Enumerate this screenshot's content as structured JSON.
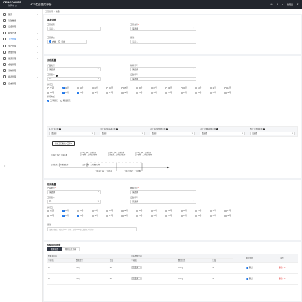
{
  "topbar": {
    "logo_en": "CFMOTORRS",
    "logo_cn": "春 风 动 力",
    "system_title": "MCP工业使用平台",
    "user_name": "管理员",
    "icons": [
      "bell-icon",
      "help-icon",
      "user-icon",
      "logout-icon"
    ]
  },
  "sidebar": {
    "items": [
      {
        "label": "首页",
        "icon": "home-icon",
        "active": false
      },
      {
        "label": "基础数据",
        "icon": "database-icon",
        "active": false
      },
      {
        "label": "设备管理",
        "icon": "device-icon",
        "active": false
      },
      {
        "label": "模型开发",
        "icon": "model-icon",
        "active": false
      },
      {
        "label": "工艺管理",
        "icon": "process-icon",
        "active": true
      },
      {
        "label": "生产管理",
        "icon": "production-icon",
        "active": false
      },
      {
        "label": "质量管理",
        "icon": "quality-icon",
        "active": false
      },
      {
        "label": "能源管理",
        "icon": "energy-icon",
        "active": false
      },
      {
        "label": "仓储管理",
        "icon": "warehouse-icon",
        "active": false
      },
      {
        "label": "系统管理",
        "icon": "system-icon",
        "active": false
      },
      {
        "label": "报表管理",
        "icon": "report-icon",
        "active": false
      },
      {
        "label": "日志管理",
        "icon": "log-icon",
        "active": false
      }
    ],
    "collapse_icon": "≡"
  },
  "breadcrumb": {
    "parent": "工艺管理",
    "current": "新增"
  },
  "basic": {
    "title": "基本信息",
    "code_label": "工艺编码",
    "code_placeholder": "请输入",
    "type_label": "工艺类型",
    "type_value": "请选择",
    "status_label": "工艺状态",
    "status_on": "启用",
    "status_off": "禁用",
    "remark_label": "备注",
    "remark_placeholder": "请输入"
  },
  "stage_section": {
    "title": "流程配置",
    "product_label": "产品类型",
    "product_value": "请选择",
    "material_label": "物料型号",
    "material_value": "请选择",
    "version_label": "工艺版本",
    "version_value": "V1",
    "equip_label": "设备型号",
    "equip_value": "请选择",
    "days_label": "执行日",
    "days_row1": [
      "全选",
      "01号",
      "02号",
      "03号",
      "04号",
      "05号",
      "06号",
      "07号",
      "08号",
      "09号",
      "10号",
      "11号",
      "12号"
    ],
    "days_row1_checked": [
      false,
      true,
      false,
      false,
      false,
      false,
      false,
      false,
      false,
      false,
      false,
      false,
      false
    ],
    "days_row2": [
      "13号",
      "14号",
      "15号",
      "16号",
      "17号",
      "18号",
      "19号",
      "20号",
      "21号",
      "22号",
      "23号",
      "24号",
      "25号"
    ],
    "days_row2_checked": [
      false,
      true,
      true,
      false,
      false,
      false,
      false,
      false,
      false,
      false,
      false,
      false,
      false
    ],
    "mode_label": "执行方式",
    "mode_options": [
      "工序模式",
      "路线模式"
    ],
    "stages": [
      {
        "label": "1.0工序名称",
        "value": "请选择"
      },
      {
        "label": "2.0工序检验标准名称",
        "value": "请选择"
      },
      {
        "label": "3.0工序检验项目名称",
        "value": "请选择"
      },
      {
        "label": "4.0工序物料清单名称",
        "value": "请选择"
      },
      {
        "label": "5.0工序资源名称",
        "value": "请选择"
      }
    ],
    "add_button": "添加工艺路线 / 工序 +",
    "flow_texts": [
      "工序1/工序2：工序名称",
      "工序1/工序2：工序名称\n工序名称：工序资源名称",
      "工序1/工序2：工序名称\n工序名称：工序资源名称",
      "工序1/工序2：工序名称\n工序名称：工序资源名称",
      "工序名称：工序资源名称",
      "工序名称：工序资源名称",
      "工序1/工序2：工序名称",
      "工序1/工序2：工序名称"
    ]
  },
  "rule_section": {
    "title": "规则配置",
    "product_label": "产品类型",
    "product_value": "请选择",
    "material_label": "物料型号",
    "material_value": "请选择",
    "version_label": "工艺版本",
    "version_value": "V1",
    "equip_label": "设备型号",
    "equip_value": "请选择",
    "days_label": "执行日",
    "days_row1": [
      "全选",
      "01号",
      "02号",
      "03号",
      "04号",
      "05号",
      "06号",
      "07号",
      "08号",
      "09号",
      "10号",
      "11号",
      "12号"
    ],
    "days_row1_checked": [
      false,
      true,
      false,
      false,
      false,
      false,
      false,
      false,
      false,
      false,
      false,
      false,
      false
    ],
    "days_row2": [
      "13号",
      "14号",
      "15号",
      "16号",
      "17号",
      "18号",
      "19号",
      "20号",
      "21号",
      "22号",
      "23号",
      "24号",
      "25号"
    ],
    "days_row2_checked": [
      false,
      true,
      true,
      false,
      false,
      false,
      false,
      false,
      false,
      false,
      false,
      false,
      false
    ],
    "remark_label": "备注",
    "remark_placeholder": "请输入备注，不超过200个字符，支持Excel格式复制导入的内容"
  },
  "mapping": {
    "title": "Mapping映射",
    "tabs": [
      "映射配置",
      "映射信息查看"
    ],
    "group_left": "数据源字段",
    "group_right": "目标数据字段",
    "columns": [
      "字段名",
      "数据类型",
      "长度",
      "字段名",
      "数据类型",
      "长度",
      "映射规则",
      "操作"
    ],
    "rows": [
      {
        "src_name": "ID",
        "src_type": "string",
        "src_len": "20",
        "dst_name": "请选择",
        "dst_type": "string",
        "dst_len": "20",
        "rule": "默认",
        "op_delete": "删除"
      },
      {
        "src_name": "ID",
        "src_type": "string",
        "src_len": "20",
        "dst_name": "请选择",
        "dst_type": "string",
        "dst_len": "20",
        "rule": "默认",
        "op_delete": "删除"
      }
    ]
  }
}
